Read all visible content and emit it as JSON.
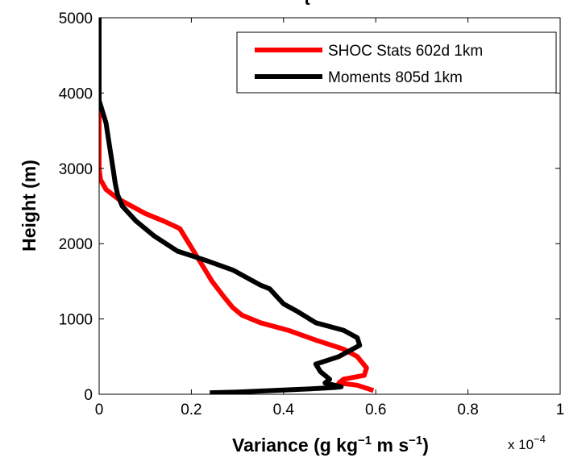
{
  "chart_data": {
    "type": "line",
    "title": "t",
    "xlabel": {
      "main": "Variance (g kg",
      "sup1": "−1",
      "mid": " m s",
      "sup2": "−1",
      "end": ")"
    },
    "ylabel": "Height (m)",
    "x_exponent": {
      "prefix": "x 10",
      "power": "−4"
    },
    "xlim": [
      0,
      1
    ],
    "ylim": [
      0,
      5000
    ],
    "x_ticks": [
      0,
      0.2,
      0.4,
      0.6,
      0.8,
      1
    ],
    "x_tick_labels": [
      "0",
      "0.2",
      "0.4",
      "0.6",
      "0.8",
      "1"
    ],
    "y_ticks": [
      0,
      1000,
      2000,
      3000,
      4000,
      5000
    ],
    "y_tick_labels": [
      "0",
      "1000",
      "2000",
      "3000",
      "4000",
      "5000"
    ],
    "grid": false,
    "legend_position": "top-right",
    "series": [
      {
        "name": "SHOC Stats 602d 1km",
        "color": "#ff0000",
        "points": [
          [
            0.595,
            50
          ],
          [
            0.56,
            120
          ],
          [
            0.52,
            150
          ],
          [
            0.53,
            200
          ],
          [
            0.575,
            250
          ],
          [
            0.58,
            350
          ],
          [
            0.56,
            500
          ],
          [
            0.53,
            600
          ],
          [
            0.47,
            720
          ],
          [
            0.41,
            850
          ],
          [
            0.35,
            950
          ],
          [
            0.31,
            1050
          ],
          [
            0.29,
            1150
          ],
          [
            0.27,
            1300
          ],
          [
            0.245,
            1500
          ],
          [
            0.225,
            1700
          ],
          [
            0.205,
            1900
          ],
          [
            0.19,
            2050
          ],
          [
            0.175,
            2200
          ],
          [
            0.14,
            2300
          ],
          [
            0.1,
            2400
          ],
          [
            0.07,
            2500
          ],
          [
            0.04,
            2600
          ],
          [
            0.015,
            2720
          ],
          [
            0.003,
            2850
          ],
          [
            0.0,
            3000
          ],
          [
            0.0,
            3500
          ],
          [
            0.0,
            3800
          ]
        ]
      },
      {
        "name": "Moments 805d 1km",
        "color": "#000000",
        "points": [
          [
            0.24,
            20
          ],
          [
            0.3,
            30
          ],
          [
            0.38,
            50
          ],
          [
            0.45,
            70
          ],
          [
            0.51,
            90
          ],
          [
            0.525,
            100
          ],
          [
            0.49,
            150
          ],
          [
            0.5,
            200
          ],
          [
            0.48,
            300
          ],
          [
            0.47,
            400
          ],
          [
            0.52,
            500
          ],
          [
            0.565,
            650
          ],
          [
            0.56,
            750
          ],
          [
            0.53,
            850
          ],
          [
            0.47,
            950
          ],
          [
            0.43,
            1100
          ],
          [
            0.4,
            1200
          ],
          [
            0.385,
            1300
          ],
          [
            0.37,
            1400
          ],
          [
            0.35,
            1450
          ],
          [
            0.32,
            1550
          ],
          [
            0.29,
            1650
          ],
          [
            0.23,
            1780
          ],
          [
            0.17,
            1900
          ],
          [
            0.12,
            2100
          ],
          [
            0.08,
            2300
          ],
          [
            0.05,
            2500
          ],
          [
            0.04,
            2650
          ],
          [
            0.035,
            2800
          ],
          [
            0.03,
            3000
          ],
          [
            0.025,
            3200
          ],
          [
            0.02,
            3400
          ],
          [
            0.015,
            3600
          ],
          [
            0.005,
            3800
          ],
          [
            0.0,
            3900
          ],
          [
            0.0,
            4200
          ],
          [
            0.0,
            5000
          ]
        ]
      }
    ]
  }
}
